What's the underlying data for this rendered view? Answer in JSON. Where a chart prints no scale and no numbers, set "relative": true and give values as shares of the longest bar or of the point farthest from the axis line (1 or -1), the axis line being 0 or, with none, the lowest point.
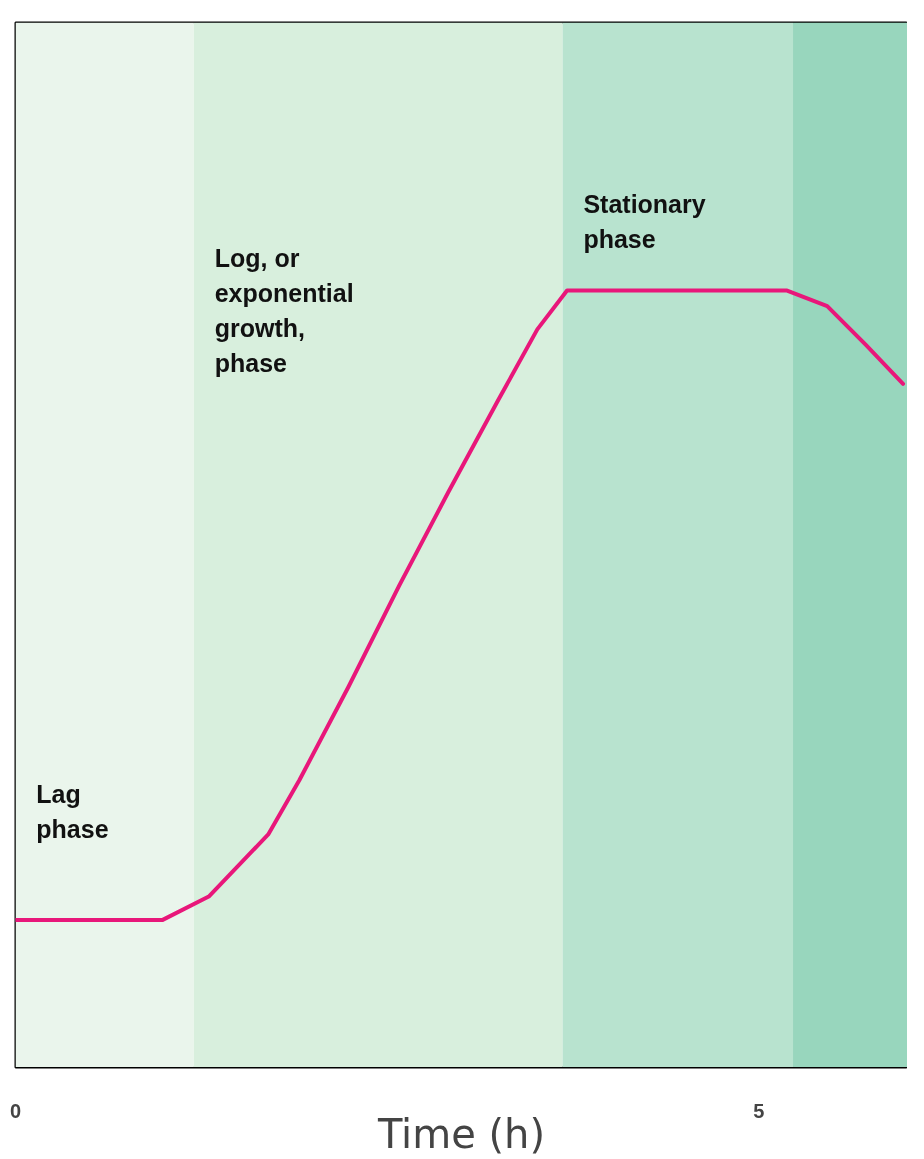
{
  "chart_data": {
    "type": "line",
    "relative": true,
    "xlabel": "Time (h)",
    "xlim": [
      0,
      6
    ],
    "xticks": [
      0,
      5
    ],
    "grid": false,
    "marker": "none",
    "line_style": "solid",
    "series": [
      {
        "color": "#e8177a",
        "x": [
          0,
          0.99,
          1.3,
          1.7,
          1.91,
          2.24,
          2.58,
          2.91,
          3.25,
          3.51,
          3.71,
          5.19,
          5.46,
          5.72,
          5.97
        ],
        "values": [
          0.19,
          0.19,
          0.22,
          0.3,
          0.37,
          0.49,
          0.62,
          0.74,
          0.86,
          0.95,
          1.0,
          1.0,
          0.98,
          0.93,
          0.88
        ]
      }
    ],
    "bands": [
      {
        "axis": "x",
        "from": 0,
        "to": 1.2,
        "label": "Lag\nphase",
        "color": "#eaf5ec"
      },
      {
        "axis": "x",
        "from": 1.2,
        "to": 3.68,
        "label": "Log, or\nexponential\ngrowth,\nphase",
        "color": "#d8efdd"
      },
      {
        "axis": "x",
        "from": 3.68,
        "to": 5.23,
        "label": "Stationary\nphase",
        "color": "#b8e3cf"
      },
      {
        "axis": "x",
        "from": 5.23,
        "to": 6,
        "label": null,
        "color": "#98d6bd"
      }
    ]
  }
}
